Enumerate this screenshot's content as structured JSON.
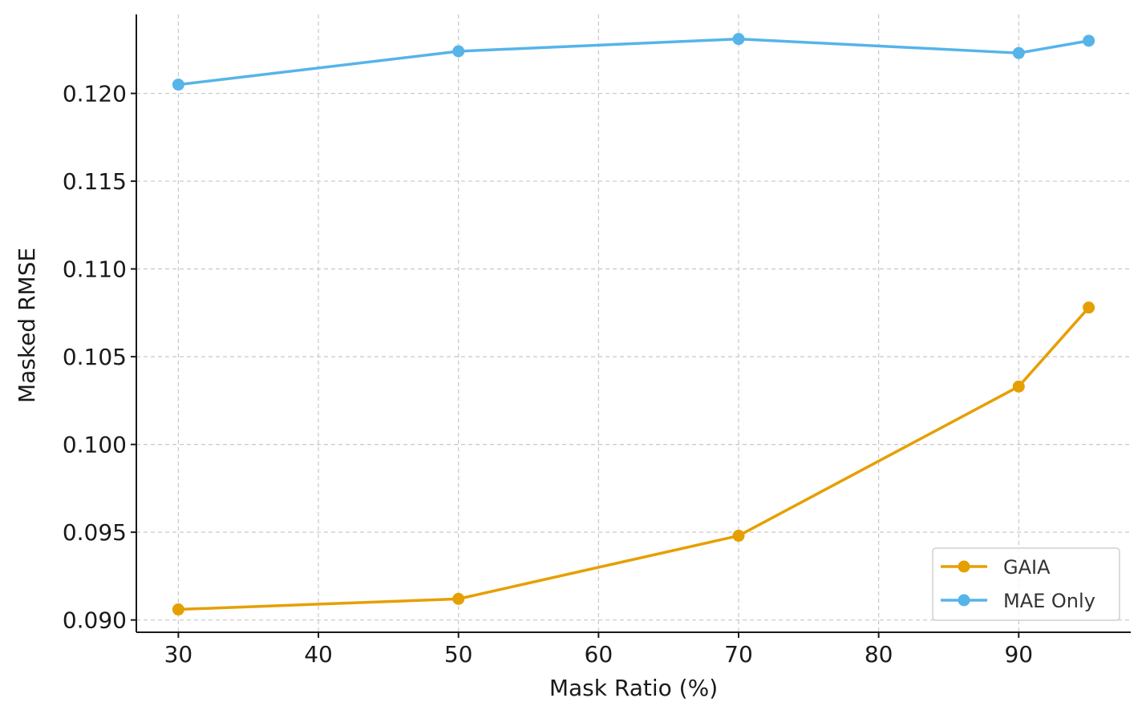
{
  "chart_data": {
    "type": "line",
    "title": "",
    "xlabel": "Mask Ratio (%)",
    "ylabel": "Masked RMSE",
    "xlim": [
      27,
      98
    ],
    "ylim": [
      0.0893,
      0.1245
    ],
    "xticks": [
      30,
      40,
      50,
      60,
      70,
      80,
      90
    ],
    "xtick_labels": [
      "30",
      "40",
      "50",
      "60",
      "70",
      "80",
      "90"
    ],
    "yticks": [
      0.09,
      0.095,
      0.1,
      0.105,
      0.11,
      0.115,
      0.12
    ],
    "ytick_labels": [
      "0.090",
      "0.095",
      "0.100",
      "0.105",
      "0.110",
      "0.115",
      "0.120"
    ],
    "grid": true,
    "legend_position": "bottom-right",
    "x": [
      30,
      50,
      70,
      90,
      95
    ],
    "series": [
      {
        "name": "GAIA",
        "color": "#E69F00",
        "values": [
          0.0906,
          0.0912,
          0.0948,
          0.1033,
          0.1078
        ]
      },
      {
        "name": "MAE Only",
        "color": "#56B4E9",
        "values": [
          0.1205,
          0.1224,
          0.1231,
          0.1223,
          0.123
        ]
      }
    ]
  }
}
